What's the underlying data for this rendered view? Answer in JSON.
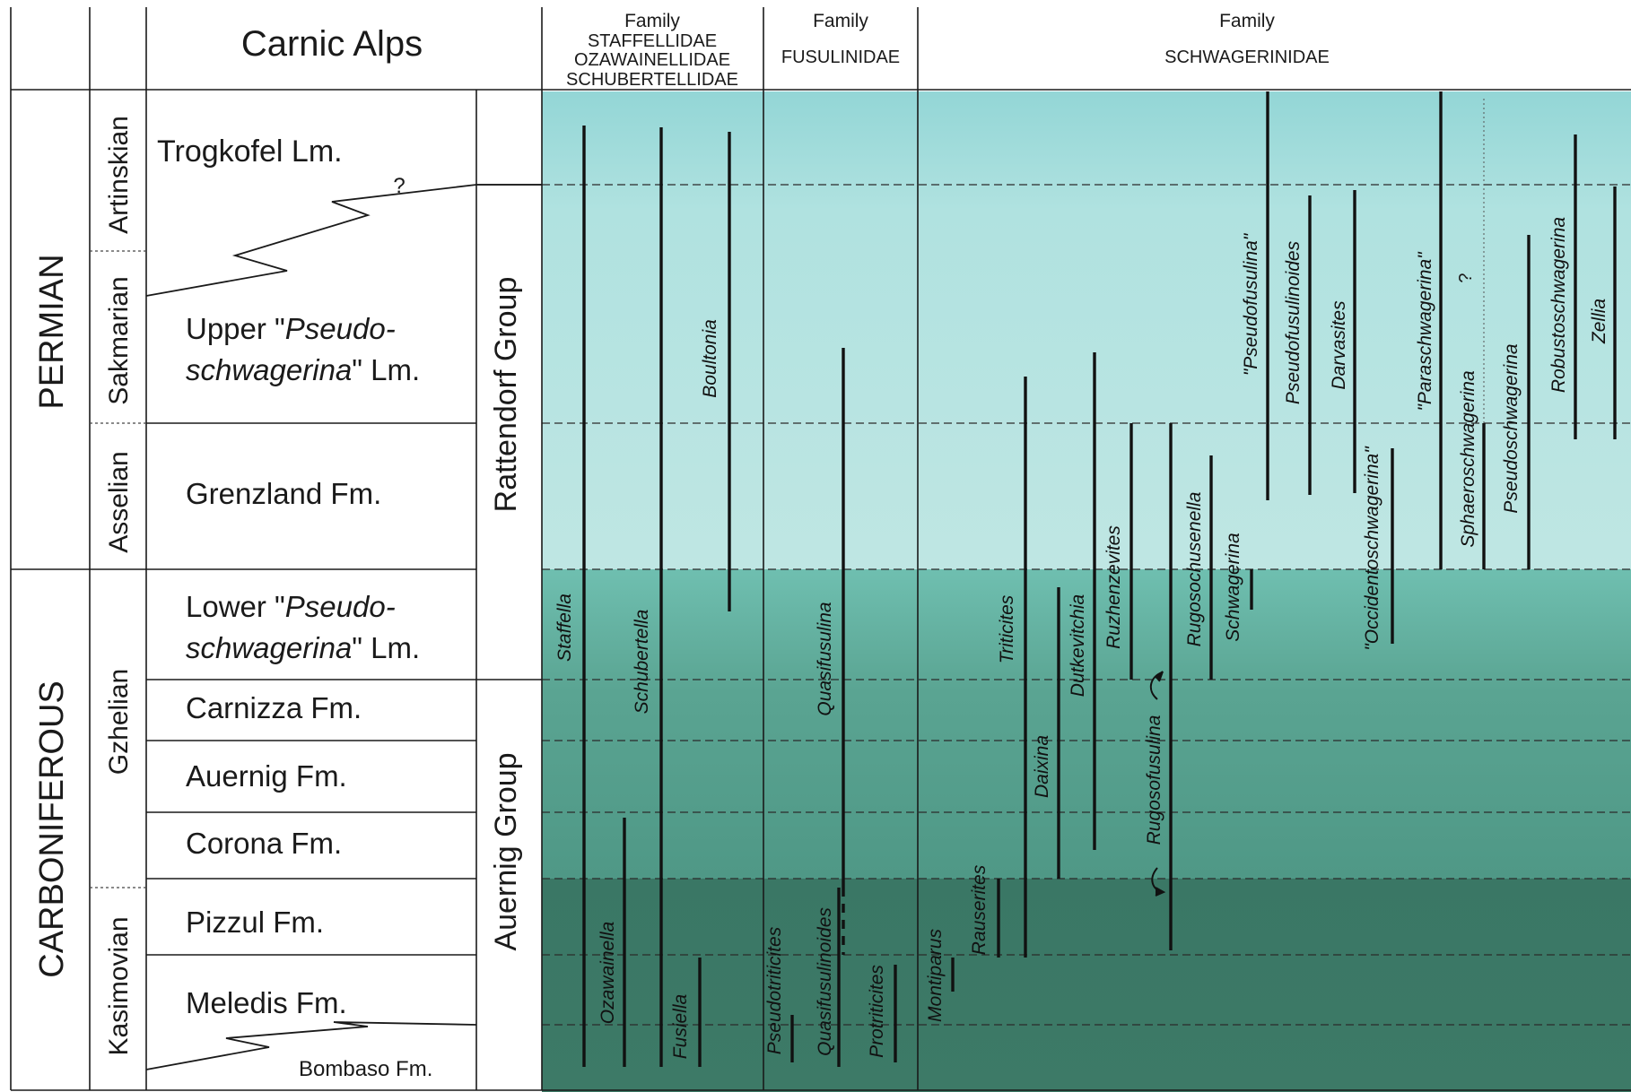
{
  "header": {
    "region": "Carnic Alps",
    "families": [
      {
        "label": "Family",
        "names": [
          "STAFFELLIDAE",
          "OZAWAINELLIDAE",
          "SCHUBERTELLIDAE"
        ]
      },
      {
        "label": "Family",
        "names": [
          "FUSULINIDAE"
        ]
      },
      {
        "label": "Family",
        "names": [
          "SCHWAGERINIDAE"
        ]
      }
    ]
  },
  "systems": [
    "PERMIAN",
    "CARBONIFEROUS"
  ],
  "stages": [
    "Artinskian",
    "Sakmarian",
    "Asselian",
    "Gzhelian",
    "Kasimovian"
  ],
  "groups": [
    "Rattendorf Group",
    "Auernig Group"
  ],
  "units": [
    {
      "id": "trogkofel",
      "lines": [
        [
          "Trogkofel Lm.",
          false
        ]
      ]
    },
    {
      "id": "upper-pseudo",
      "lines": [
        [
          "Upper \"",
          false
        ],
        [
          "Pseudo-",
          true
        ],
        [
          "|",
          false
        ],
        [
          "schwagerina",
          true
        ],
        [
          "\" Lm.",
          false
        ]
      ]
    },
    {
      "id": "grenzland",
      "lines": [
        [
          "Grenzland Fm.",
          false
        ]
      ]
    },
    {
      "id": "lower-pseudo",
      "lines": [
        [
          "Lower \"",
          false
        ],
        [
          "Pseudo-",
          true
        ],
        [
          "|",
          false
        ],
        [
          "schwagerina",
          true
        ],
        [
          "\" Lm.",
          false
        ]
      ]
    },
    {
      "id": "carnizza",
      "lines": [
        [
          "Carnizza Fm.",
          false
        ]
      ]
    },
    {
      "id": "auernig",
      "lines": [
        [
          "Auernig Fm.",
          false
        ]
      ]
    },
    {
      "id": "corona",
      "lines": [
        [
          "Corona Fm.",
          false
        ]
      ]
    },
    {
      "id": "pizzul",
      "lines": [
        [
          "Pizzul Fm.",
          false
        ]
      ]
    },
    {
      "id": "meledis",
      "lines": [
        [
          "Meledis Fm.",
          false
        ]
      ]
    },
    {
      "id": "bombaso",
      "lines": [
        [
          "Bombaso Fm.",
          false
        ]
      ]
    }
  ],
  "question_mark": "?",
  "taxa": [
    {
      "name": "Staffella",
      "family": "STAFFELLIDAE"
    },
    {
      "name": "Schubertella",
      "family": "SCHUBERTELLIDAE"
    },
    {
      "name": "Boultonia",
      "family": "SCHUBERTELLIDAE"
    },
    {
      "name": "Ozawainella",
      "family": "OZAWAINELLIDAE"
    },
    {
      "name": "Fusiella",
      "family": "SCHUBERTELLIDAE"
    },
    {
      "name": "Quasifusulina",
      "family": "FUSULINIDAE"
    },
    {
      "name": "Quasifusulinoides",
      "family": "FUSULINIDAE"
    },
    {
      "name": "Pseudotriticites",
      "family": "FUSULINIDAE"
    },
    {
      "name": "Protriticites",
      "family": "FUSULINIDAE"
    },
    {
      "name": "Montiparus",
      "family": "SCHWAGERINIDAE"
    },
    {
      "name": "Rauserites",
      "family": "SCHWAGERINIDAE"
    },
    {
      "name": "Triticites",
      "family": "SCHWAGERINIDAE"
    },
    {
      "name": "Daixina",
      "family": "SCHWAGERINIDAE"
    },
    {
      "name": "Dutkevitchia",
      "family": "SCHWAGERINIDAE"
    },
    {
      "name": "Ruzhenzevites",
      "family": "SCHWAGERINIDAE"
    },
    {
      "name": "Rugosofusulina",
      "family": "SCHWAGERINIDAE"
    },
    {
      "name": "Rugosochusenella",
      "family": "SCHWAGERINIDAE"
    },
    {
      "name": "Schwagerina",
      "family": "SCHWAGERINIDAE"
    },
    {
      "name": "\"Pseudofusulina\"",
      "family": "SCHWAGERINIDAE"
    },
    {
      "name": "Pseudofusulinoides",
      "family": "SCHWAGERINIDAE"
    },
    {
      "name": "Darvasites",
      "family": "SCHWAGERINIDAE"
    },
    {
      "name": "\"Occidentoschwagerina\"",
      "family": "SCHWAGERINIDAE"
    },
    {
      "name": "\"Paraschwagerina\"",
      "family": "SCHWAGERINIDAE"
    },
    {
      "name": "Sphaeroschwagerina",
      "family": "SCHWAGERINIDAE"
    },
    {
      "name": "Pseudoschwagerina",
      "family": "SCHWAGERINIDAE"
    },
    {
      "name": "Robustoschwagerina",
      "family": "SCHWAGERINIDAE"
    },
    {
      "name": "Zellia",
      "family": "SCHWAGERINIDAE"
    }
  ],
  "colors": {
    "permian_band": "#b6e2e0",
    "upper_carboniferous_band": "#6fb5a5",
    "lower_carboniferous_band": "#3f7b68",
    "range_bar": "#111111",
    "grid_line": "#1a1a1a"
  }
}
